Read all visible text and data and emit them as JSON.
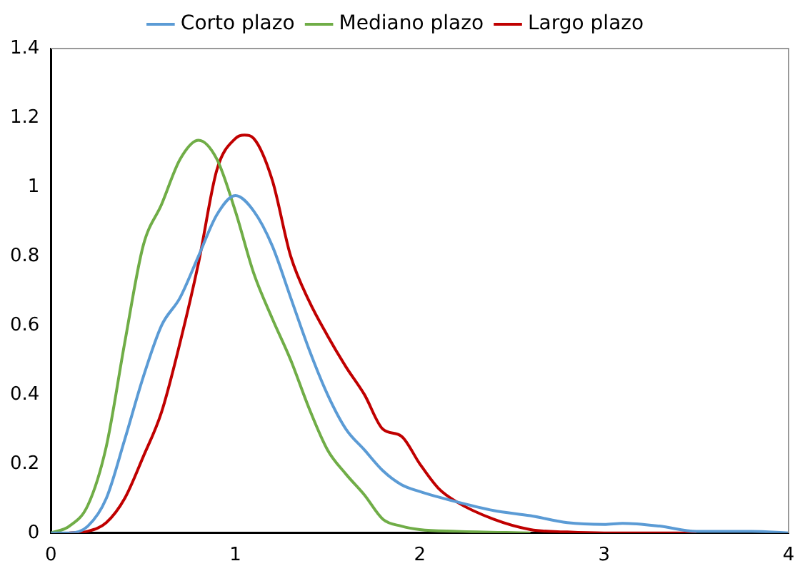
{
  "chart_data": {
    "type": "line",
    "legend": "top",
    "grid": false,
    "marker": "none",
    "line_style": "solid",
    "xlim": [
      0,
      4
    ],
    "xticks": [
      0,
      1,
      2,
      3,
      4
    ],
    "ylim": [
      0,
      1.4
    ],
    "yticks": [
      0,
      0.2,
      0.4,
      0.6,
      0.8,
      1,
      1.2,
      1.4
    ],
    "series": [
      {
        "name": "Corto plazo",
        "color": "#5b9bd5",
        "x": [
          0,
          0.1,
          0.2,
          0.3,
          0.4,
          0.5,
          0.6,
          0.7,
          0.8,
          0.9,
          1.0,
          1.1,
          1.2,
          1.3,
          1.4,
          1.5,
          1.6,
          1.7,
          1.8,
          1.9,
          2.0,
          2.2,
          2.4,
          2.6,
          2.8,
          3.0,
          3.1,
          3.3,
          3.5,
          3.8,
          4.0
        ],
        "values": [
          0,
          0,
          0.02,
          0.1,
          0.27,
          0.45,
          0.6,
          0.68,
          0.8,
          0.92,
          0.975,
          0.93,
          0.83,
          0.68,
          0.53,
          0.4,
          0.3,
          0.24,
          0.18,
          0.14,
          0.12,
          0.09,
          0.065,
          0.05,
          0.03,
          0.025,
          0.028,
          0.02,
          0.005,
          0.005,
          0
        ]
      },
      {
        "name": "Mediano plazo",
        "color": "#70ad47",
        "x": [
          0,
          0.1,
          0.2,
          0.3,
          0.4,
          0.5,
          0.6,
          0.7,
          0.8,
          0.9,
          1.0,
          1.1,
          1.2,
          1.3,
          1.4,
          1.5,
          1.6,
          1.7,
          1.8,
          1.9,
          2.0,
          2.2,
          2.6
        ],
        "values": [
          0,
          0.02,
          0.08,
          0.25,
          0.55,
          0.83,
          0.95,
          1.08,
          1.135,
          1.08,
          0.93,
          0.75,
          0.62,
          0.5,
          0.36,
          0.24,
          0.17,
          0.11,
          0.04,
          0.02,
          0.01,
          0.005,
          0
        ]
      },
      {
        "name": "Largo plazo",
        "color": "#c00000",
        "x": [
          0.1,
          0.2,
          0.3,
          0.4,
          0.5,
          0.6,
          0.7,
          0.8,
          0.9,
          1.0,
          1.05,
          1.1,
          1.2,
          1.3,
          1.4,
          1.5,
          1.6,
          1.7,
          1.8,
          1.9,
          2.0,
          2.1,
          2.2,
          2.4,
          2.6,
          2.8,
          3.0,
          3.5
        ],
        "values": [
          0,
          0.005,
          0.03,
          0.1,
          0.22,
          0.35,
          0.55,
          0.78,
          1.05,
          1.14,
          1.15,
          1.14,
          1.02,
          0.8,
          0.67,
          0.57,
          0.48,
          0.4,
          0.3,
          0.28,
          0.2,
          0.13,
          0.09,
          0.04,
          0.01,
          0.003,
          0,
          0
        ]
      }
    ]
  }
}
